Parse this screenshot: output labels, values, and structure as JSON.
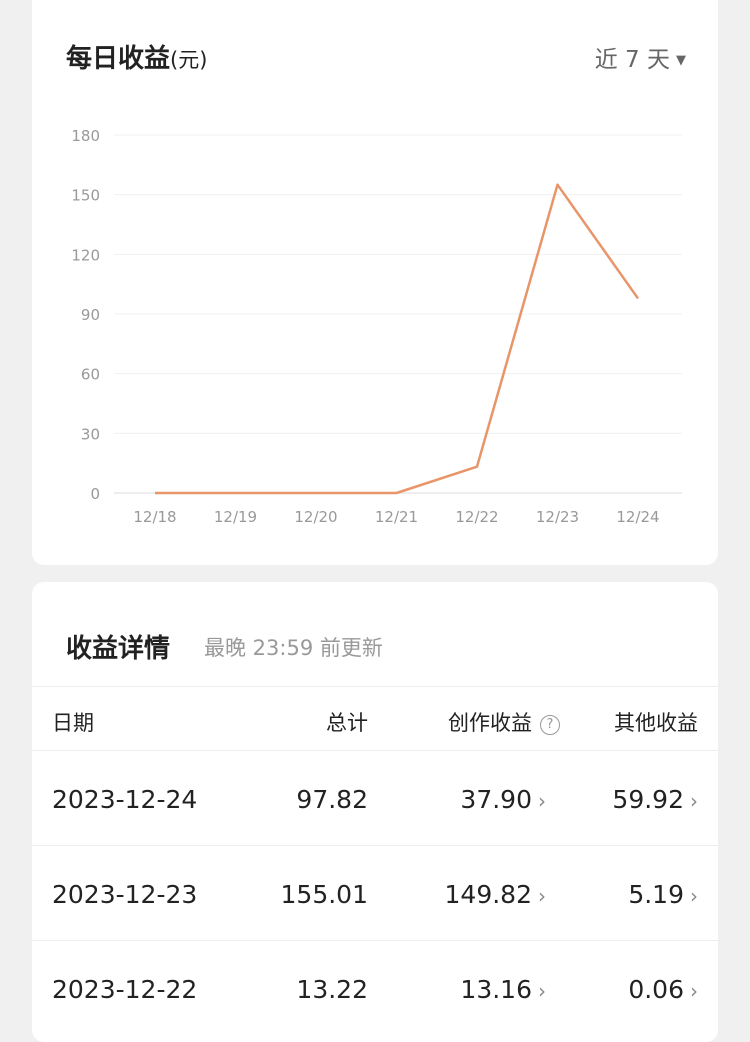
{
  "chart_card": {
    "title": "每日收益",
    "unit": "(元)",
    "range_label": "近 7 天",
    "range_icon": "triangle-down-icon"
  },
  "chart_data": {
    "type": "line",
    "categories": [
      "12/18",
      "12/19",
      "12/20",
      "12/21",
      "12/22",
      "12/23",
      "12/24"
    ],
    "values": [
      0,
      0,
      0,
      0,
      13.22,
      155.01,
      97.82
    ],
    "yticks": [
      0,
      30,
      60,
      90,
      120,
      150,
      180
    ],
    "ylim": [
      0,
      180
    ],
    "grid": true,
    "line_color": "#e8956a"
  },
  "details": {
    "title": "收益详情",
    "subtitle": "最晚 23:59 前更新",
    "headers": [
      "日期",
      "总计",
      "创作收益",
      "其他收益"
    ],
    "rows": [
      [
        "2023-12-24",
        "97.82",
        "37.90",
        "59.92"
      ],
      [
        "2023-12-23",
        "155.01",
        "149.82",
        "5.19"
      ],
      [
        "2023-12-22",
        "13.22",
        "13.16",
        "0.06"
      ]
    ]
  }
}
